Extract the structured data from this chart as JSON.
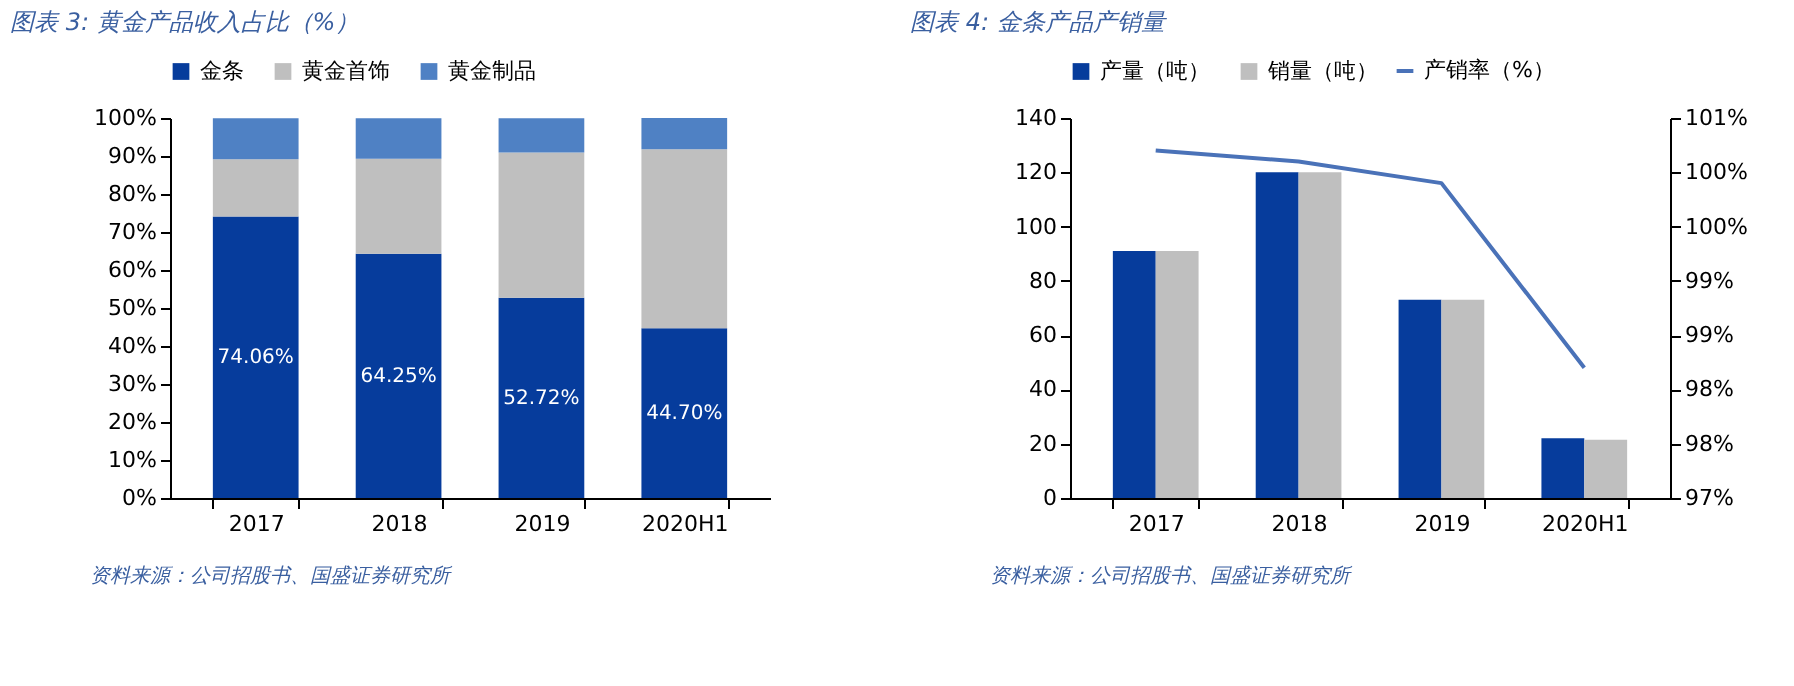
{
  "chart_data": [
    {
      "type": "bar",
      "stacked": true,
      "title": "图表 3: 黄金产品收入占比（%）",
      "categories": [
        "2017",
        "2018",
        "2019",
        "2020H1"
      ],
      "series": [
        {
          "name": "金条",
          "color": "#063c9c",
          "values": [
            74.06,
            64.25,
            52.72,
            44.7
          ],
          "value_labels": [
            "74.06%",
            "64.25%",
            "52.72%",
            "44.70%"
          ]
        },
        {
          "name": "黄金首饰",
          "color": "#bfbfbf",
          "values": [
            15.1,
            25.0,
            38.2,
            47.1
          ]
        },
        {
          "name": "黄金制品",
          "color": "#4f81c4",
          "values": [
            10.8,
            10.7,
            9.0,
            8.2
          ]
        }
      ],
      "ylim": [
        0,
        100
      ],
      "yticks": [
        {
          "value": 0,
          "label": "0%"
        },
        {
          "value": 10,
          "label": "10%"
        },
        {
          "value": 20,
          "label": "20%"
        },
        {
          "value": 30,
          "label": "30%"
        },
        {
          "value": 40,
          "label": "40%"
        },
        {
          "value": 50,
          "label": "50%"
        },
        {
          "value": 60,
          "label": "60%"
        },
        {
          "value": 70,
          "label": "70%"
        },
        {
          "value": 80,
          "label": "80%"
        },
        {
          "value": 90,
          "label": "90%"
        },
        {
          "value": 100,
          "label": "100%"
        }
      ],
      "legend": "top",
      "grid": false,
      "annotations": [
        "资料来源：公司招股书、国盛证券研究所"
      ]
    },
    {
      "type": "bar",
      "title": "图表 4: 金条产品产销量",
      "categories": [
        "2017",
        "2018",
        "2019",
        "2020H1"
      ],
      "series": [
        {
          "name": "产量（吨）",
          "color": "#063c9c",
          "values": [
            91,
            120,
            73,
            22
          ]
        },
        {
          "name": "销量（吨）",
          "color": "#bfbfbf",
          "values": [
            91,
            120,
            73,
            21.5
          ]
        },
        {
          "name": "产销率（%）",
          "type": "line",
          "axis": "y2",
          "color": "#4a72b8",
          "values": [
            100.2,
            100.1,
            99.9,
            98.2
          ]
        }
      ],
      "ylim": [
        0,
        140
      ],
      "yticks": [
        0,
        20,
        40,
        60,
        80,
        100,
        120,
        140
      ],
      "y2lim": [
        97,
        100.5
      ],
      "y2ticks": [
        {
          "value": 97,
          "label": "97%"
        },
        {
          "value": 97.5,
          "label": "98%"
        },
        {
          "value": 98,
          "label": "98%"
        },
        {
          "value": 98.5,
          "label": "99%"
        },
        {
          "value": 99,
          "label": "99%"
        },
        {
          "value": 99.5,
          "label": "100%"
        },
        {
          "value": 100,
          "label": "100%"
        },
        {
          "value": 100.5,
          "label": "101%"
        }
      ],
      "legend": "top",
      "grid": false,
      "annotations": [
        "资料来源：公司招股书、国盛证券研究所"
      ]
    }
  ]
}
